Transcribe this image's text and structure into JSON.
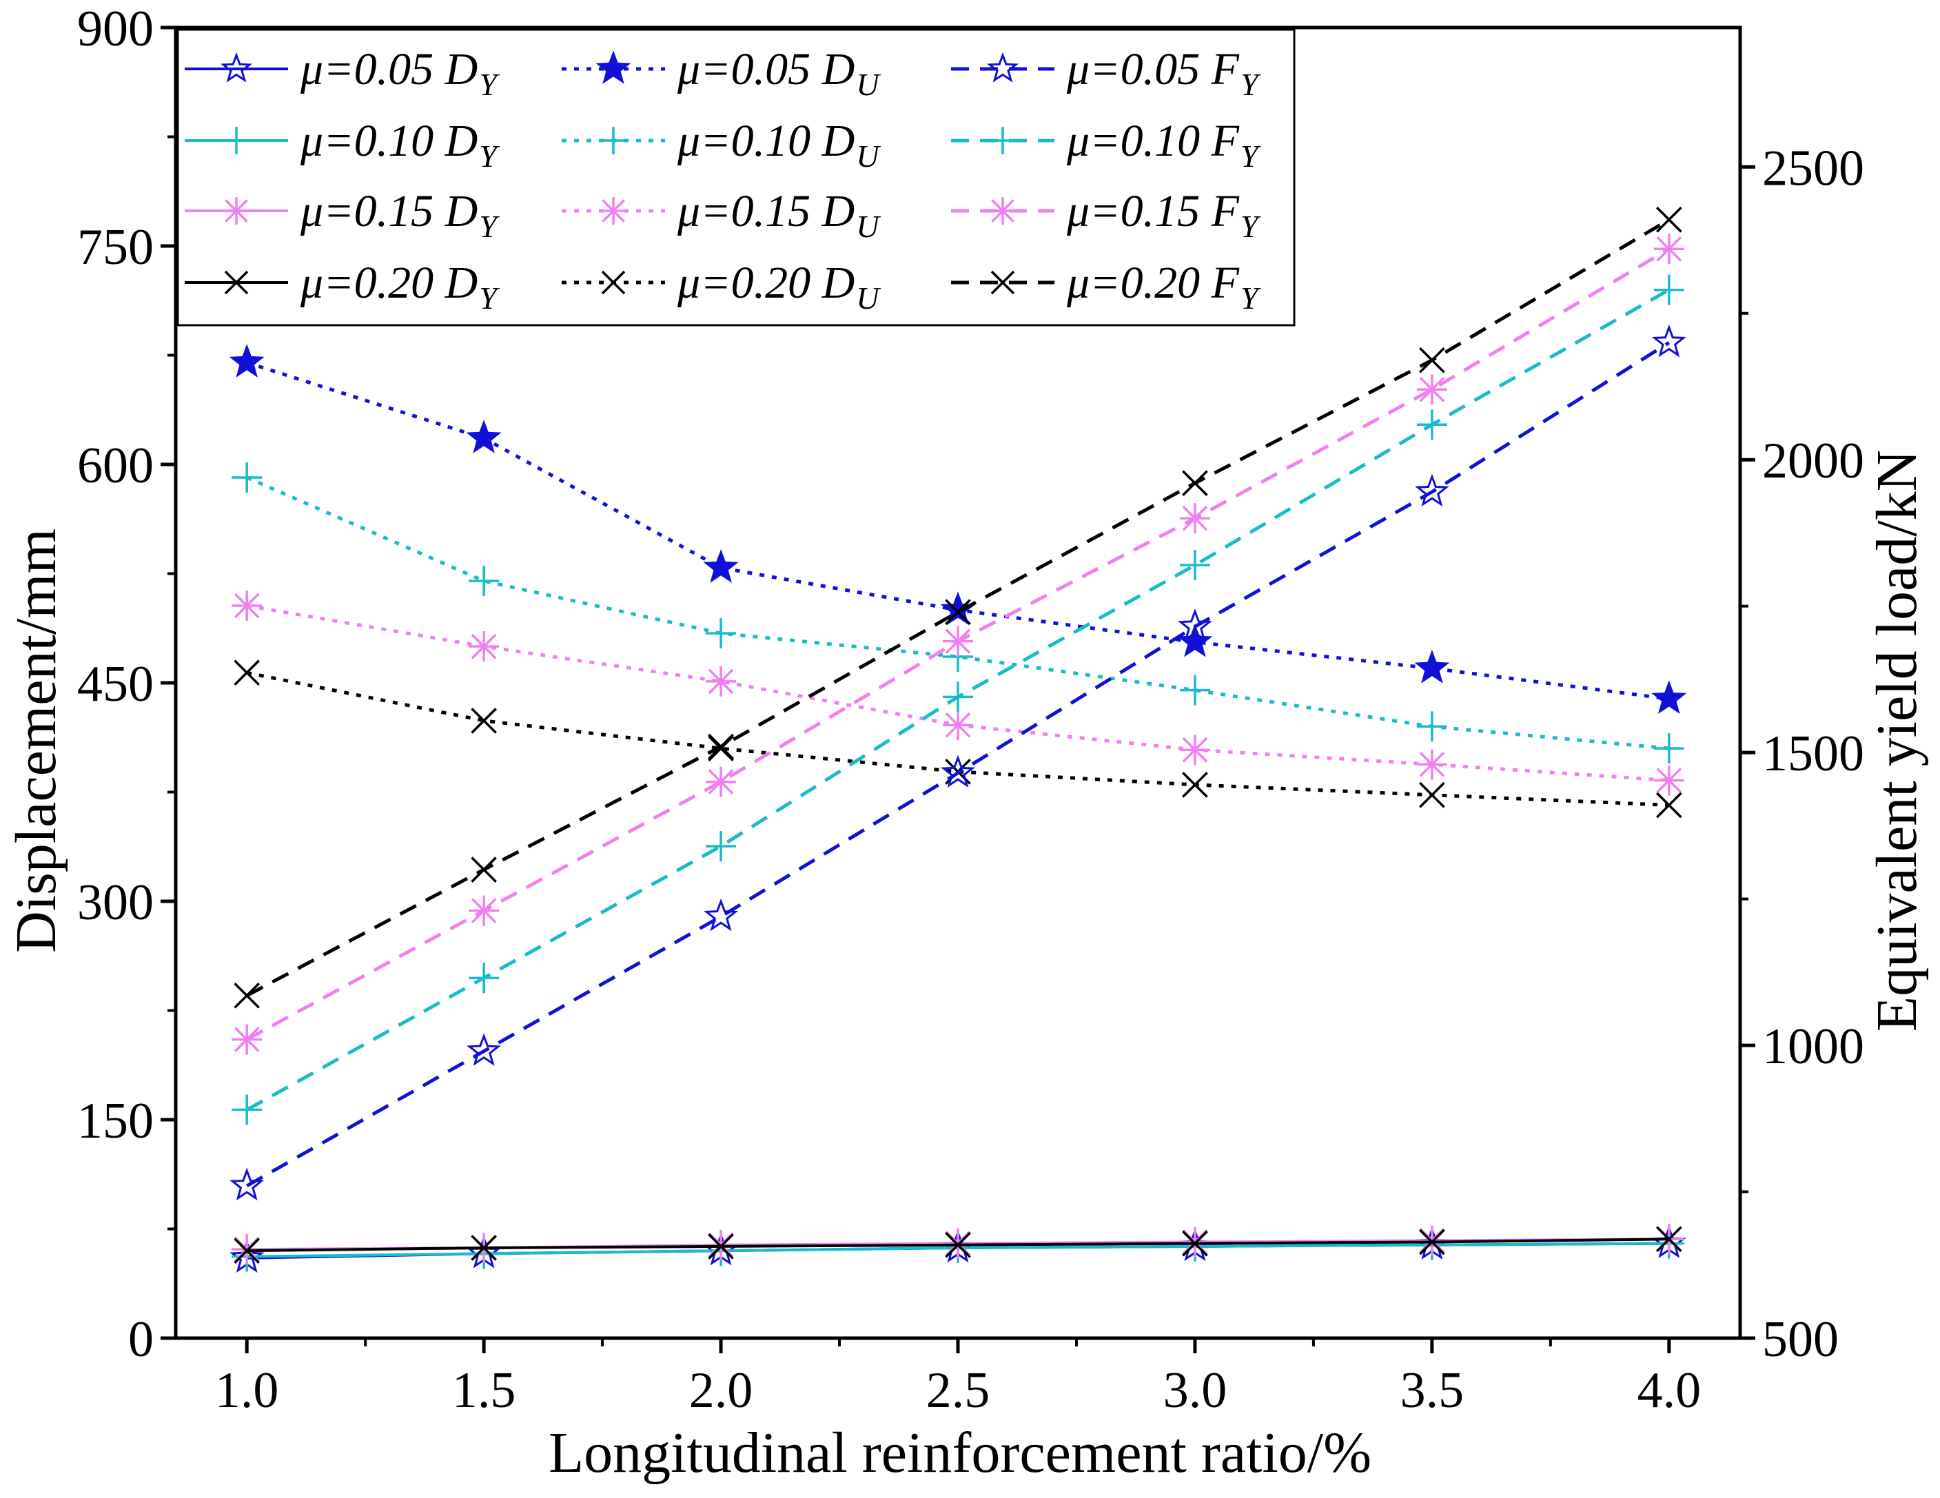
{
  "chart_data": {
    "type": "line",
    "xlabel": "Longitudinal reinforcement ratio/%",
    "ylabel_left": "Displacement/mm",
    "ylabel_right": "Equivalent yield load/kN",
    "x": [
      1.0,
      1.5,
      2.0,
      2.5,
      3.0,
      3.5,
      4.0
    ],
    "x_ticks": [
      "1.0",
      "1.5",
      "2.0",
      "2.5",
      "3.0",
      "3.5",
      "4.0"
    ],
    "xlim": [
      0.85,
      4.15
    ],
    "ylim_left": [
      0,
      900
    ],
    "ylim_right": [
      500,
      2738
    ],
    "y_left_ticks": [
      "0",
      "150",
      "300",
      "450",
      "600",
      "750",
      "900"
    ],
    "y_right_ticks": [
      "500",
      "1000",
      "1500",
      "2000",
      "2500"
    ],
    "legend_position": "top-left",
    "colors": {
      "mu005": "#1010d8",
      "mu010": "#18bcc8",
      "mu015": "#f080f0",
      "mu020": "#000000"
    },
    "series": [
      {
        "name": "μ=0.05 D_Y",
        "label_main": "μ=0.05 D",
        "label_sub": "Y",
        "axis": "left",
        "color_key": "mu005",
        "line": "solid",
        "marker": "star-outline",
        "values": [
          55,
          58,
          60,
          62,
          63,
          64,
          65
        ]
      },
      {
        "name": "μ=0.10 D_Y",
        "label_main": "μ=0.10 D",
        "label_sub": "Y",
        "axis": "left",
        "color_key": "mu010",
        "line": "solid",
        "marker": "plus",
        "values": [
          56,
          58,
          60,
          62,
          63,
          64,
          65
        ]
      },
      {
        "name": "μ=0.15 D_Y",
        "label_main": "μ=0.15 D",
        "label_sub": "Y",
        "axis": "left",
        "color_key": "mu015",
        "line": "solid",
        "marker": "asterisk",
        "values": [
          61,
          62,
          64,
          65,
          66,
          67,
          68
        ]
      },
      {
        "name": "μ=0.20 D_Y",
        "label_main": "μ=0.20 D",
        "label_sub": "Y",
        "axis": "left",
        "color_key": "mu020",
        "line": "solid",
        "marker": "x",
        "values": [
          60,
          62,
          63,
          64,
          65,
          66,
          68
        ]
      },
      {
        "name": "μ=0.05 D_U",
        "label_main": "μ=0.05 D",
        "label_sub": "U",
        "axis": "left",
        "color_key": "mu005",
        "line": "dotted",
        "marker": "star-filled",
        "values": [
          670,
          618,
          529,
          500,
          478,
          460,
          439
        ]
      },
      {
        "name": "μ=0.10 D_U",
        "label_main": "μ=0.10 D",
        "label_sub": "U",
        "axis": "left",
        "color_key": "mu010",
        "line": "dotted",
        "marker": "plus",
        "values": [
          591,
          520,
          484,
          468,
          445,
          420,
          405
        ]
      },
      {
        "name": "μ=0.15 D_U",
        "label_main": "μ=0.15 D",
        "label_sub": "U",
        "axis": "left",
        "color_key": "mu015",
        "line": "dotted",
        "marker": "asterisk",
        "values": [
          503,
          475,
          451,
          421,
          404,
          394,
          383
        ]
      },
      {
        "name": "μ=0.20 D_U",
        "label_main": "μ=0.20 D",
        "label_sub": "U",
        "axis": "left",
        "color_key": "mu020",
        "line": "dotted",
        "marker": "x",
        "values": [
          457,
          424,
          405,
          389,
          380,
          373,
          366
        ]
      },
      {
        "name": "μ=0.05 F_Y",
        "label_main": "μ=0.05 F",
        "label_sub": "Y",
        "axis": "right",
        "color_key": "mu005",
        "line": "dashed",
        "marker": "star-outline",
        "values": [
          760,
          990,
          1220,
          1465,
          1715,
          1945,
          2200
        ]
      },
      {
        "name": "μ=0.10 F_Y",
        "label_main": "μ=0.10 F",
        "label_sub": "Y",
        "axis": "right",
        "color_key": "mu010",
        "line": "dashed",
        "marker": "plus",
        "values": [
          890,
          1115,
          1340,
          1595,
          1820,
          2060,
          2290
        ]
      },
      {
        "name": "μ=0.15 F_Y",
        "label_main": "μ=0.15 F",
        "label_sub": "Y",
        "axis": "right",
        "color_key": "mu015",
        "line": "dashed",
        "marker": "asterisk",
        "values": [
          1010,
          1230,
          1450,
          1690,
          1900,
          2120,
          2360
        ]
      },
      {
        "name": "μ=0.20 F_Y",
        "label_main": "μ=0.20 F",
        "label_sub": "Y",
        "axis": "right",
        "color_key": "mu020",
        "line": "dashed",
        "marker": "x",
        "values": [
          1085,
          1300,
          1510,
          1740,
          1960,
          2170,
          2410
        ]
      }
    ]
  }
}
